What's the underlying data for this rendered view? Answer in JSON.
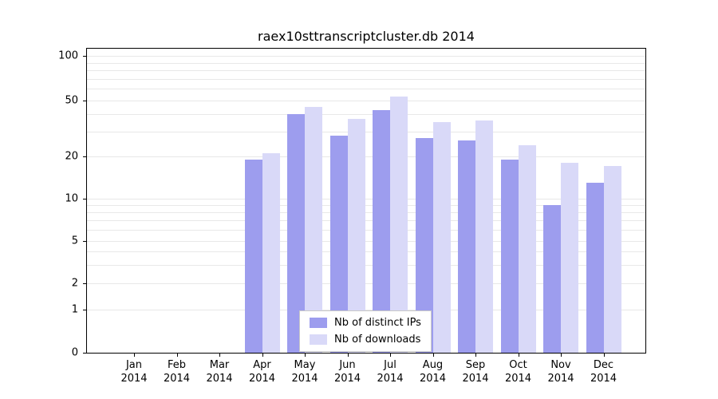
{
  "title": "raex10sttranscriptcluster.db 2014",
  "chart_data": {
    "type": "bar",
    "title": "raex10sttranscriptcluster.db 2014",
    "categories": [
      "Jan 2014",
      "Feb 2014",
      "Mar 2014",
      "Apr 2014",
      "May 2014",
      "Jun 2014",
      "Jul 2014",
      "Aug 2014",
      "Sep 2014",
      "Oct 2014",
      "Nov 2014",
      "Dec 2014"
    ],
    "series": [
      {
        "name": "Nb of distinct IPs",
        "color": "#9d9dee",
        "values": [
          0,
          0,
          0,
          19,
          40,
          28,
          43,
          27,
          26,
          19,
          9,
          13
        ]
      },
      {
        "name": "Nb of downloads",
        "color": "#d9d9f8",
        "values": [
          0,
          0,
          0,
          21,
          45,
          37,
          53,
          35,
          36,
          24,
          18,
          17
        ]
      }
    ],
    "yticks": [
      0,
      1,
      2,
      5,
      10,
      20,
      50,
      100
    ],
    "ylim": [
      0,
      110
    ],
    "yscale": "log",
    "xlabel": "",
    "ylabel": "",
    "grid": true,
    "legend_position": "lower center inside"
  },
  "colors": {
    "bar_distinct_ips": "#9d9dee",
    "bar_downloads": "#d9d9f8",
    "gridline": "#e8e8e8",
    "axis": "#000000",
    "legend_border": "#c8c8c8",
    "background": "#ffffff"
  }
}
